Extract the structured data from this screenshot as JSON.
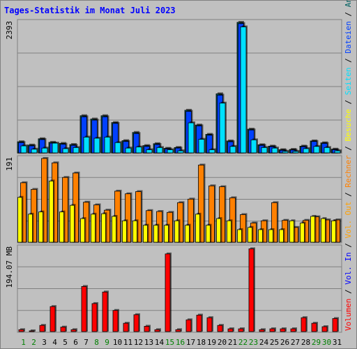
{
  "chart_data": {
    "type": "bar",
    "title": "Tages-Statistik im Monat Juli 2023",
    "categories": [
      "1",
      "2",
      "3",
      "4",
      "5",
      "6",
      "7",
      "8",
      "9",
      "10",
      "11",
      "12",
      "13",
      "14",
      "15",
      "16",
      "17",
      "18",
      "19",
      "20",
      "21",
      "22",
      "23",
      "24",
      "25",
      "26",
      "27",
      "28",
      "29",
      "30",
      "31"
    ],
    "weekend_days": [
      "1",
      "2",
      "8",
      "9",
      "15",
      "16",
      "22",
      "23",
      "29",
      "30"
    ],
    "colors": {
      "title": "#0000ff",
      "background": "#c0c0c0",
      "plot_background": "#c0c0c0",
      "grid": "#808080",
      "weekday_label": "#000000",
      "weekend_label": "#008000",
      "anfragen": "#006060",
      "dateien": "#0040ff",
      "seiten": "#00e0ff",
      "besuche": "#ffff00",
      "rechner": "#ff8000",
      "vol_out": "#ffa000",
      "vol_in": "#0000ff",
      "volumen": "#ff0000"
    },
    "panels": [
      {
        "id": "hits",
        "ymax_label": "2393",
        "ylim": [
          0,
          2393
        ],
        "legend": [
          {
            "label": "Anfragen",
            "color": "#006060"
          },
          {
            "label": "Dateien",
            "color": "#0040ff"
          },
          {
            "label": "Seiten",
            "color": "#00e0ff"
          }
        ],
        "series": [
          {
            "name": "Anfragen",
            "color": "#006060",
            "values": [
              215,
              155,
              270,
              205,
              185,
              165,
              690,
              630,
              690,
              565,
              235,
              385,
              145,
              180,
              95,
              110,
              790,
              520,
              350,
              1090,
              230,
              2393,
              445,
              160,
              135,
              70,
              75,
              135,
              230,
              195,
              80
            ]
          },
          {
            "name": "Dateien",
            "color": "#0040ff",
            "values": [
              200,
              140,
              255,
              190,
              170,
              150,
              670,
              610,
              670,
              550,
              220,
              365,
              130,
              165,
              85,
              100,
              770,
              505,
              335,
              1065,
              215,
              2370,
              430,
              150,
              125,
              60,
              65,
              125,
              220,
              185,
              70
            ]
          },
          {
            "name": "Seiten",
            "color": "#00e0ff",
            "values": [
              140,
              80,
              100,
              190,
              90,
              110,
              300,
              280,
              300,
              200,
              100,
              120,
              70,
              110,
              70,
              50,
              560,
              260,
              70,
              920,
              130,
              2310,
              250,
              110,
              100,
              40,
              40,
              90,
              130,
              110,
              50
            ]
          }
        ]
      },
      {
        "id": "visits",
        "ymax_label": "191",
        "ylim": [
          0,
          191
        ],
        "legend": [
          {
            "label": "Besuche",
            "color": "#ffff00"
          },
          {
            "label": "Rechner",
            "color": "#ff8000"
          }
        ],
        "series": [
          {
            "name": "Besuche",
            "color": "#ffff00",
            "values": [
              103,
              65,
              70,
              140,
              70,
              85,
              55,
              65,
              66,
              60,
              50,
              50,
              40,
              40,
              40,
              50,
              40,
              65,
              40,
              55,
              50,
              30,
              35,
              30,
              30,
              30,
              50,
              45,
              60,
              55,
              50
            ]
          },
          {
            "name": "Rechner",
            "color": "#ff8000",
            "values": [
              136,
              121,
              191,
              181,
              148,
              158,
              92,
              86,
              74,
              117,
              111,
              116,
              73,
              71,
              69,
              91,
              99,
              176,
              129,
              127,
              102,
              64,
              45,
              50,
              91,
              51,
              35,
              51,
              59,
              52,
              52
            ]
          }
        ]
      },
      {
        "id": "volume",
        "ymax_label": "194.07 MB",
        "ylim": [
          0,
          194.07
        ],
        "legend": [
          {
            "label": "Vol. Out",
            "color": "#ffa000"
          },
          {
            "label": "Vol. In",
            "color": "#0000ff"
          },
          {
            "label": "Volumen",
            "color": "#ff0000"
          }
        ],
        "series": [
          {
            "name": "Volumen",
            "color": "#ff0000",
            "values": [
              6,
              3,
              16,
              60,
              12,
              6,
              107,
              67,
              94,
              51,
              21,
              41,
              14,
              6,
              183,
              6,
              29,
              40,
              34,
              16,
              8,
              8,
              195,
              6,
              8,
              8,
              8,
              34,
              21,
              13,
              32
            ]
          }
        ]
      }
    ],
    "legend_placement": "right-vertical",
    "grid": true
  }
}
